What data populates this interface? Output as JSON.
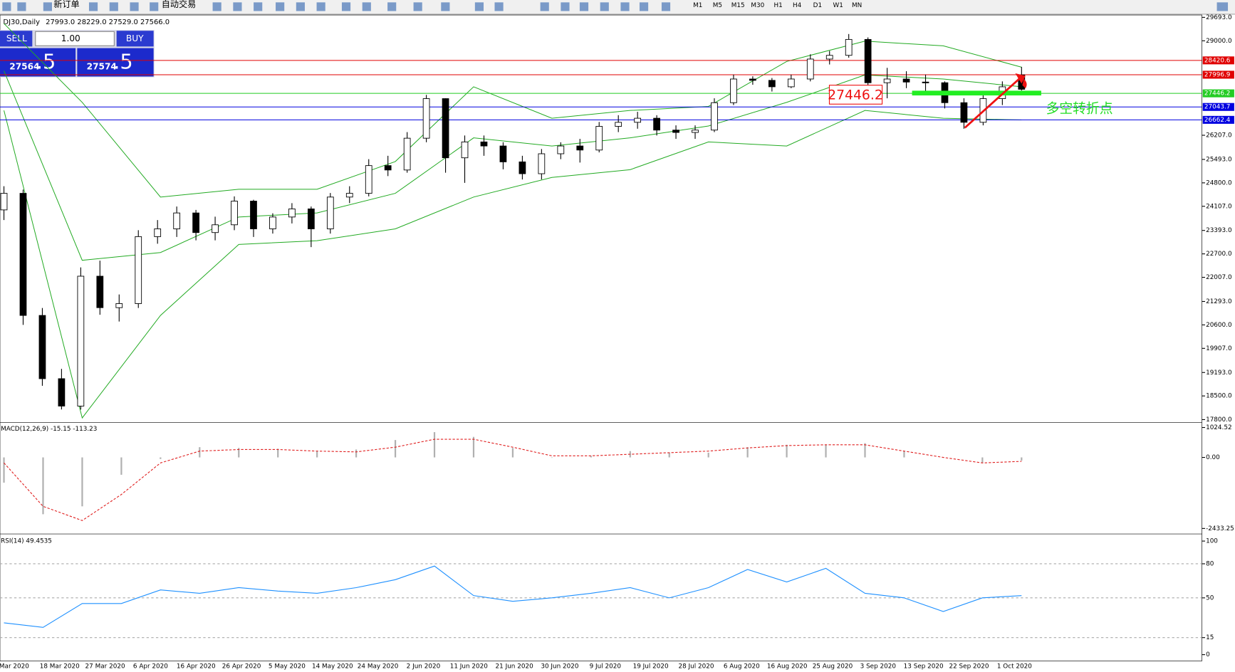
{
  "toolbar": {
    "new_order": "新订单",
    "auto_trading": "自动交易",
    "timeframes": [
      "M1",
      "M5",
      "M15",
      "M30",
      "H1",
      "H4",
      "D1",
      "W1",
      "MN"
    ]
  },
  "chart_header": {
    "symbol": "DJ30,Daily",
    "ohlc": "27993.0 28229.0 27529.0 27566.0"
  },
  "trade_panel": {
    "sell": "SELL",
    "buy": "BUY",
    "lots": "1.00",
    "sell_price_main": "27564",
    "sell_price_frac": ".5",
    "buy_price_main": "27574",
    "buy_price_frac": ".5"
  },
  "chart_data": {
    "type": "candlestick",
    "ylim": [
      17800,
      29693
    ],
    "yticks": [
      {
        "value": 29693,
        "label": "29693.0"
      },
      {
        "value": 29000,
        "label": "29000.0"
      },
      {
        "value": 26207,
        "label": "26207.0"
      },
      {
        "value": 25493,
        "label": "25493.0"
      },
      {
        "value": 24800,
        "label": "24800.0"
      },
      {
        "value": 24107,
        "label": "24107.0"
      },
      {
        "value": 23393,
        "label": "23393.0"
      },
      {
        "value": 22700,
        "label": "22700.0"
      },
      {
        "value": 22007,
        "label": "22007.0"
      },
      {
        "value": 21293,
        "label": "21293.0"
      },
      {
        "value": 20600,
        "label": "20600.0"
      },
      {
        "value": 19907,
        "label": "19907.0"
      },
      {
        "value": 19193,
        "label": "19193.0"
      },
      {
        "value": 18500,
        "label": "18500.0"
      },
      {
        "value": 17800,
        "label": "17800.0"
      }
    ],
    "x_labels": [
      "Mar 2020",
      "18 Mar 2020",
      "27 Mar 2020",
      "6 Apr 2020",
      "16 Apr 2020",
      "26 Apr 2020",
      "5 May 2020",
      "14 May 2020",
      "24 May 2020",
      "2 Jun 2020",
      "11 Jun 2020",
      "21 Jun 2020",
      "30 Jun 2020",
      "9 Jul 2020",
      "19 Jul 2020",
      "28 Jul 2020",
      "6 Aug 2020",
      "16 Aug 2020",
      "25 Aug 2020",
      "3 Sep 2020",
      "13 Sep 2020",
      "22 Sep 2020",
      "1 Oct 2020"
    ],
    "candles": [
      [
        24000,
        24700,
        23700,
        24490
      ],
      [
        24490,
        24600,
        20600,
        20880
      ],
      [
        20880,
        21100,
        18800,
        19010
      ],
      [
        19010,
        19300,
        18100,
        18200
      ],
      [
        18200,
        22300,
        18100,
        22040
      ],
      [
        22040,
        22500,
        20900,
        21110
      ],
      [
        21110,
        21500,
        20700,
        21230
      ],
      [
        21230,
        23400,
        21100,
        23210
      ],
      [
        23210,
        23700,
        23000,
        23440
      ],
      [
        23440,
        24100,
        23200,
        23910
      ],
      [
        23910,
        24000,
        23100,
        23330
      ],
      [
        23330,
        23800,
        23100,
        23560
      ],
      [
        23560,
        24400,
        23400,
        24260
      ],
      [
        24260,
        24300,
        23200,
        23440
      ],
      [
        23440,
        23900,
        23300,
        23790
      ],
      [
        23790,
        24200,
        23600,
        24030
      ],
      [
        24030,
        24100,
        22900,
        23440
      ],
      [
        23440,
        24500,
        23300,
        24380
      ],
      [
        24380,
        24700,
        24200,
        24490
      ],
      [
        24490,
        25500,
        24400,
        25310
      ],
      [
        25310,
        25600,
        25000,
        25180
      ],
      [
        25180,
        26300,
        25100,
        26120
      ],
      [
        26120,
        27400,
        26000,
        27290
      ],
      [
        27290,
        27300,
        25100,
        25540
      ],
      [
        25540,
        26200,
        24800,
        26010
      ],
      [
        26010,
        26200,
        25600,
        25890
      ],
      [
        25890,
        26000,
        25200,
        25420
      ],
      [
        25420,
        25600,
        24900,
        25070
      ],
      [
        25070,
        25800,
        24900,
        25660
      ],
      [
        25660,
        26000,
        25500,
        25890
      ],
      [
        25890,
        26100,
        25400,
        25770
      ],
      [
        25770,
        26600,
        25700,
        26470
      ],
      [
        26470,
        26800,
        26300,
        26590
      ],
      [
        26590,
        26900,
        26400,
        26710
      ],
      [
        26710,
        26800,
        26200,
        26360
      ],
      [
        26360,
        26500,
        26100,
        26290
      ],
      [
        26290,
        26500,
        26100,
        26360
      ],
      [
        26360,
        27300,
        26300,
        27170
      ],
      [
        27170,
        28000,
        27100,
        27870
      ],
      [
        27870,
        27950,
        27700,
        27830
      ],
      [
        27830,
        27900,
        27500,
        27640
      ],
      [
        27640,
        28000,
        27600,
        27870
      ],
      [
        27870,
        28600,
        27800,
        28460
      ],
      [
        28460,
        28700,
        28300,
        28570
      ],
      [
        28570,
        29200,
        28500,
        29040
      ],
      [
        29040,
        29100,
        27600,
        27760
      ],
      [
        27760,
        28200,
        27300,
        27870
      ],
      [
        27870,
        28100,
        27600,
        27780
      ],
      [
        27780,
        28000,
        27500,
        27760
      ],
      [
        27760,
        27800,
        27000,
        27170
      ],
      [
        27170,
        27300,
        26400,
        26590
      ],
      [
        26590,
        27400,
        26500,
        27290
      ],
      [
        27290,
        27800,
        27100,
        27640
      ],
      [
        27993,
        28229,
        27529,
        27566
      ]
    ],
    "bollinger": {
      "color": "#22aa22",
      "upper": [
        29510,
        27180,
        24380,
        24610,
        24610,
        25430,
        27640,
        26710,
        26940,
        27060,
        28390,
        28990,
        28850,
        28220
      ],
      "middle": [
        28110,
        22510,
        22740,
        23790,
        23910,
        24490,
        26130,
        25890,
        26130,
        26480,
        27180,
        27990,
        27870,
        27640
      ],
      "lower": [
        26940,
        17850,
        20880,
        22980,
        23090,
        23440,
        24380,
        24960,
        25190,
        26010,
        25890,
        26940,
        26710,
        26660
      ]
    },
    "levels": [
      {
        "value": 28420.6,
        "color": "#e00000"
      },
      {
        "value": 27996.9,
        "color": "#e00000"
      },
      {
        "value": 27446.2,
        "color": "#22cc22"
      },
      {
        "value": 27043.7,
        "color": "#0000e0"
      },
      {
        "value": 26662.4,
        "color": "#0000e0"
      }
    ],
    "annotations": {
      "price_box": "27446.2",
      "turning_point": "多空转折点"
    },
    "macd": {
      "label": "MACD(12,26,9) -15.15 -113.23",
      "ylim": [
        -2433.25,
        1024.52
      ],
      "yticks": [
        {
          "value": 1024.52,
          "label": "1024.52"
        },
        {
          "value": 0,
          "label": "0.00"
        },
        {
          "value": -2433.25,
          "label": "-2433.25"
        }
      ],
      "histogram": [
        -865,
        -1946,
        -1676,
        -595,
        -54,
        351,
        324,
        297,
        216,
        270,
        595,
        865,
        703,
        324,
        0,
        54,
        216,
        162,
        162,
        351,
        432,
        432,
        486,
        216,
        0,
        -189,
        -108
      ],
      "signal": [
        -189,
        -1676,
        -2162,
        -1270,
        -189,
        216,
        270,
        270,
        216,
        189,
        351,
        622,
        622,
        351,
        54,
        54,
        108,
        162,
        216,
        324,
        405,
        432,
        432,
        216,
        0,
        -189,
        -135
      ]
    },
    "rsi": {
      "label": "RSI(14) 49.4535",
      "ylim": [
        0,
        100
      ],
      "yticks": [
        100,
        80,
        50,
        15,
        0
      ],
      "levels": [
        80,
        50,
        15
      ],
      "values": [
        28,
        24,
        45,
        45,
        57,
        54,
        59,
        56,
        54,
        59,
        66,
        78,
        52,
        47,
        50,
        54,
        59,
        50,
        59,
        75,
        64,
        76,
        54,
        50,
        38,
        50,
        52
      ]
    }
  }
}
